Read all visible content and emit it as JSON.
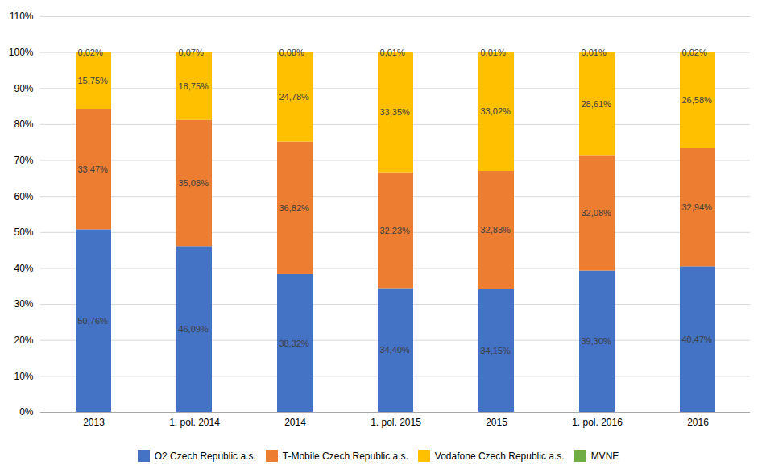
{
  "chart_data": {
    "type": "bar",
    "stacked": true,
    "categories": [
      "2013",
      "1. pol. 2014",
      "2014",
      "1. pol. 2015",
      "2015",
      "1. pol. 2016",
      "2016"
    ],
    "series": [
      {
        "name": "O2 Czech Republic a.s.",
        "color": "#4472C4",
        "values": [
          50.76,
          46.09,
          38.32,
          34.4,
          34.15,
          39.3,
          40.47
        ],
        "value_labels": [
          "50,76%",
          "46,09%",
          "38,32%",
          "34,40%",
          "34,15%",
          "39,30%",
          "40,47%"
        ]
      },
      {
        "name": "T-Mobile Czech Republic a.s.",
        "color": "#ED7D31",
        "values": [
          33.47,
          35.08,
          36.82,
          32.23,
          32.83,
          32.08,
          32.94
        ],
        "value_labels": [
          "33,47%",
          "35,08%",
          "36,82%",
          "32,23%",
          "32,83%",
          "32,08%",
          "32,94%"
        ]
      },
      {
        "name": "Vodafone Czech Republic a.s.",
        "color": "#FFC000",
        "values": [
          15.75,
          18.75,
          24.78,
          33.35,
          33.02,
          28.61,
          26.58
        ],
        "value_labels": [
          "15,75%",
          "18,75%",
          "24,78%",
          "33,35%",
          "33,02%",
          "28,61%",
          "26,58%"
        ]
      },
      {
        "name": "MVNE",
        "color": "#70AD47",
        "values": [
          0.02,
          0.07,
          0.08,
          0.01,
          0.01,
          0.01,
          0.02
        ],
        "value_labels": [
          "0,02%",
          "0,07%",
          "0,08%",
          "0,01%",
          "0,01%",
          "0,01%",
          "0,02%"
        ]
      }
    ],
    "ylim": [
      0,
      110
    ],
    "yticks": [
      {
        "value": 0,
        "label": "0%"
      },
      {
        "value": 10,
        "label": "10%"
      },
      {
        "value": 20,
        "label": "20%"
      },
      {
        "value": 30,
        "label": "30%"
      },
      {
        "value": 40,
        "label": "40%"
      },
      {
        "value": 50,
        "label": "50%"
      },
      {
        "value": 60,
        "label": "60%"
      },
      {
        "value": 70,
        "label": "70%"
      },
      {
        "value": 80,
        "label": "80%"
      },
      {
        "value": 90,
        "label": "90%"
      },
      {
        "value": 100,
        "label": "100%"
      },
      {
        "value": 110,
        "label": "110%"
      }
    ],
    "grid": true,
    "legend": "bottom",
    "data_labels": true
  }
}
